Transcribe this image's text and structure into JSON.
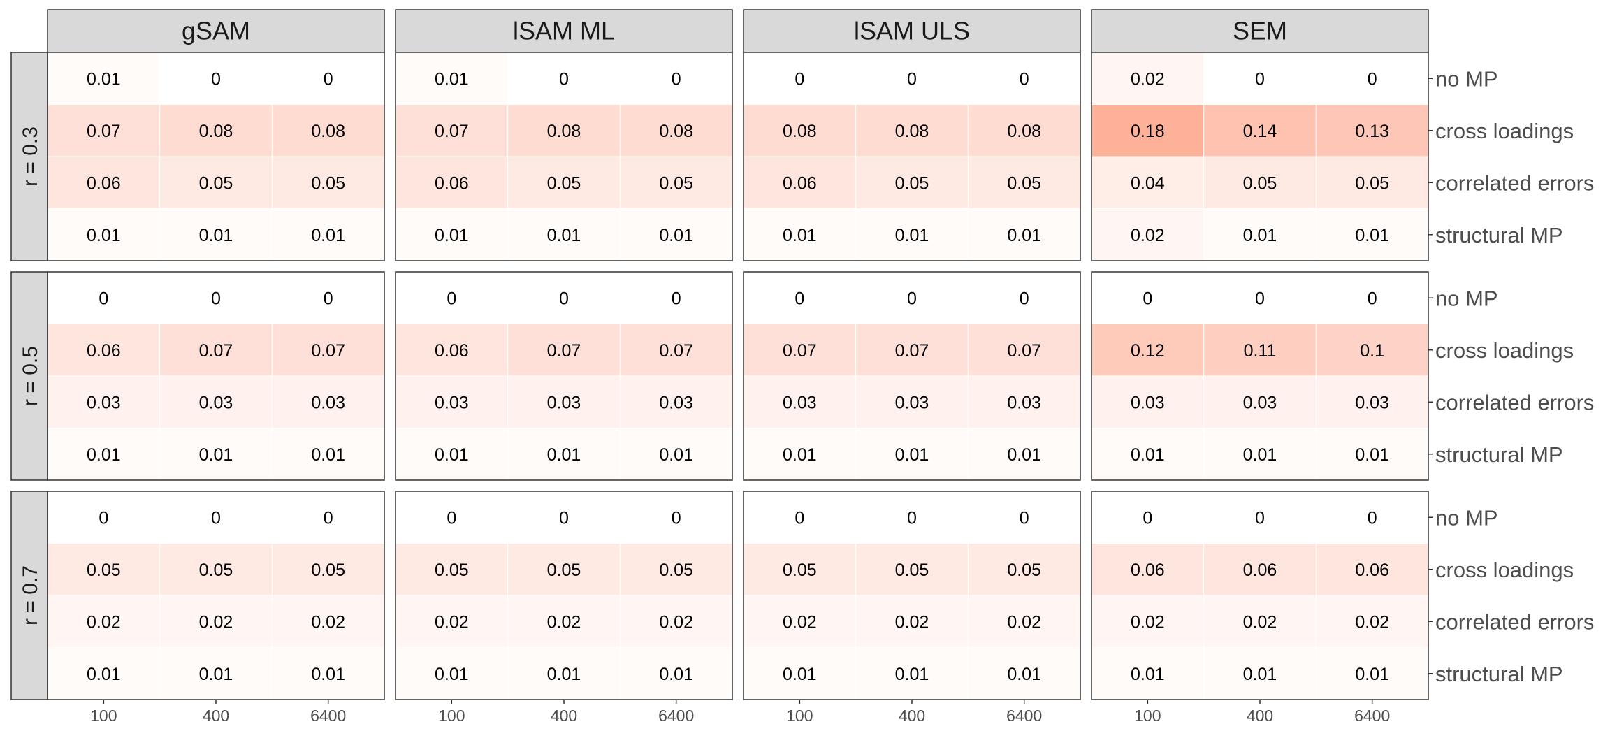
{
  "chart_data": {
    "type": "heatmap",
    "x_ticks": [
      "100",
      "400",
      "6400"
    ],
    "row_labels": [
      "no MP",
      "cross loadings",
      "correlated errors",
      "structural MP"
    ],
    "column_facets": [
      "gSAM",
      "lSAM ML",
      "lSAM ULS",
      "SEM"
    ],
    "row_facets": [
      "r = 0.3",
      "r = 0.5",
      "r = 0.7"
    ],
    "fill_scale": {
      "low": "#ffffff",
      "high": "#fc9272",
      "domain": [
        0,
        0.25
      ]
    },
    "values": [
      [
        [
          [
            0.01,
            0.0,
            0.0
          ],
          [
            0.07,
            0.08,
            0.08
          ],
          [
            0.06,
            0.05,
            0.05
          ],
          [
            0.01,
            0.01,
            0.01
          ]
        ],
        [
          [
            0.01,
            0.0,
            0.0
          ],
          [
            0.07,
            0.08,
            0.08
          ],
          [
            0.06,
            0.05,
            0.05
          ],
          [
            0.01,
            0.01,
            0.01
          ]
        ],
        [
          [
            0.0,
            0.0,
            0.0
          ],
          [
            0.08,
            0.08,
            0.08
          ],
          [
            0.06,
            0.05,
            0.05
          ],
          [
            0.01,
            0.01,
            0.01
          ]
        ],
        [
          [
            0.02,
            0.0,
            0.0
          ],
          [
            0.18,
            0.14,
            0.13
          ],
          [
            0.04,
            0.05,
            0.05
          ],
          [
            0.02,
            0.01,
            0.01
          ]
        ]
      ],
      [
        [
          [
            0.0,
            0.0,
            0.0
          ],
          [
            0.06,
            0.07,
            0.07
          ],
          [
            0.03,
            0.03,
            0.03
          ],
          [
            0.01,
            0.01,
            0.01
          ]
        ],
        [
          [
            0.0,
            0.0,
            0.0
          ],
          [
            0.06,
            0.07,
            0.07
          ],
          [
            0.03,
            0.03,
            0.03
          ],
          [
            0.01,
            0.01,
            0.01
          ]
        ],
        [
          [
            0.0,
            0.0,
            0.0
          ],
          [
            0.07,
            0.07,
            0.07
          ],
          [
            0.03,
            0.03,
            0.03
          ],
          [
            0.01,
            0.01,
            0.01
          ]
        ],
        [
          [
            0.0,
            0.0,
            0.0
          ],
          [
            0.12,
            0.11,
            0.1
          ],
          [
            0.03,
            0.03,
            0.03
          ],
          [
            0.01,
            0.01,
            0.01
          ]
        ]
      ],
      [
        [
          [
            0.0,
            0.0,
            0.0
          ],
          [
            0.05,
            0.05,
            0.05
          ],
          [
            0.02,
            0.02,
            0.02
          ],
          [
            0.01,
            0.01,
            0.01
          ]
        ],
        [
          [
            0.0,
            0.0,
            0.0
          ],
          [
            0.05,
            0.05,
            0.05
          ],
          [
            0.02,
            0.02,
            0.02
          ],
          [
            0.01,
            0.01,
            0.01
          ]
        ],
        [
          [
            0.0,
            0.0,
            0.0
          ],
          [
            0.05,
            0.05,
            0.05
          ],
          [
            0.02,
            0.02,
            0.02
          ],
          [
            0.01,
            0.01,
            0.01
          ]
        ],
        [
          [
            0.0,
            0.0,
            0.0
          ],
          [
            0.06,
            0.06,
            0.06
          ],
          [
            0.02,
            0.02,
            0.02
          ],
          [
            0.01,
            0.01,
            0.01
          ]
        ]
      ]
    ]
  },
  "colors": {
    "strip_fill": "#d9d9d9",
    "panel_border": "#333333",
    "strip_text": "#1a1a1a",
    "axis_text": "#4d4d4d",
    "cell_text": "#000000"
  }
}
